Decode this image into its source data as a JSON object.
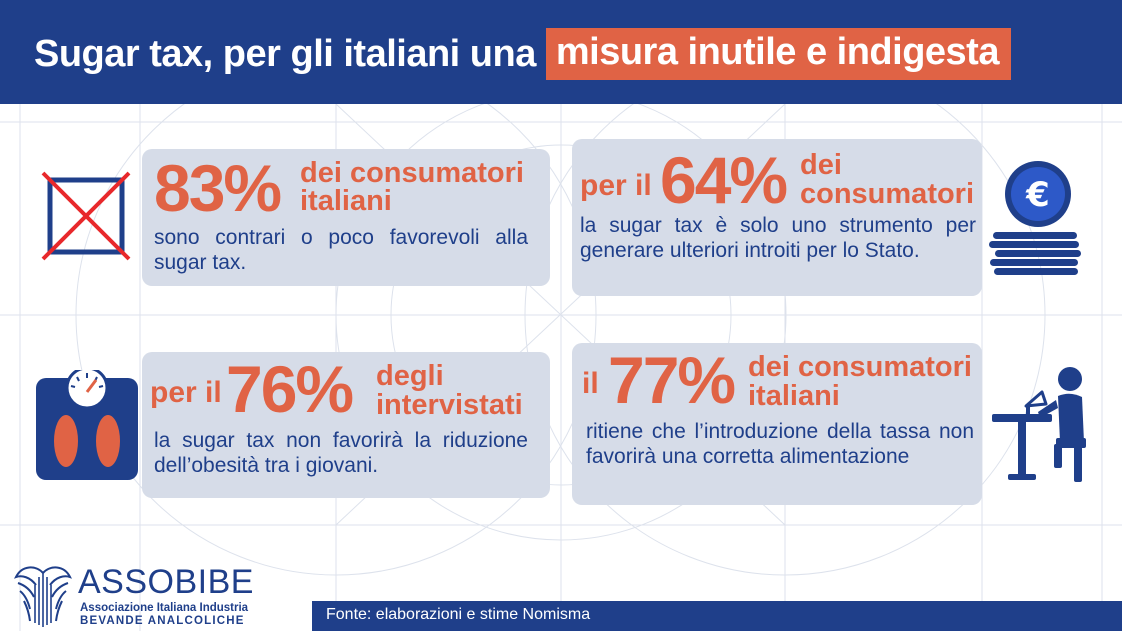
{
  "header": {
    "title_plain": "Sugar tax, per gli italiani una",
    "title_highlight": "misura inutile e indigesta"
  },
  "cards": [
    {
      "prefix": "",
      "percent": "83%",
      "lead_line1": "dei consumatori",
      "lead_line2": "italiani",
      "body": "sono contrari o poco favorevoli alla sugar tax.",
      "icon": "crossed-box-icon"
    },
    {
      "prefix": "per il",
      "percent": "64%",
      "lead_line1": "dei",
      "lead_line2": "consumatori",
      "body": "la sugar tax è solo uno strumento per generare ulteriori introiti per lo Stato.",
      "icon": "euro-coins-icon"
    },
    {
      "prefix": "per il",
      "percent": "76%",
      "lead_line1": "degli",
      "lead_line2": "intervistati",
      "body": "la sugar tax non favorirà la riduzione dell’obesità tra i giovani.",
      "icon": "bathroom-scale-icon"
    },
    {
      "prefix": "il",
      "percent": "77%",
      "lead_line1": "dei consumatori",
      "lead_line2": "italiani",
      "body": "ritiene che l’introduzione della tassa non favorirà una corretta alimentazione",
      "icon": "person-eating-icon"
    }
  ],
  "footer": {
    "source": "Fonte: elaborazioni e stime Nomisma"
  },
  "logo": {
    "name": "ASSOBIBE",
    "sub1": "Associazione Italiana Industria",
    "sub2": "BEVANDE ANALCOLICHE"
  },
  "colors": {
    "navy": "#1f3f8a",
    "accent": "#e06345",
    "card": "#d6dce8"
  }
}
